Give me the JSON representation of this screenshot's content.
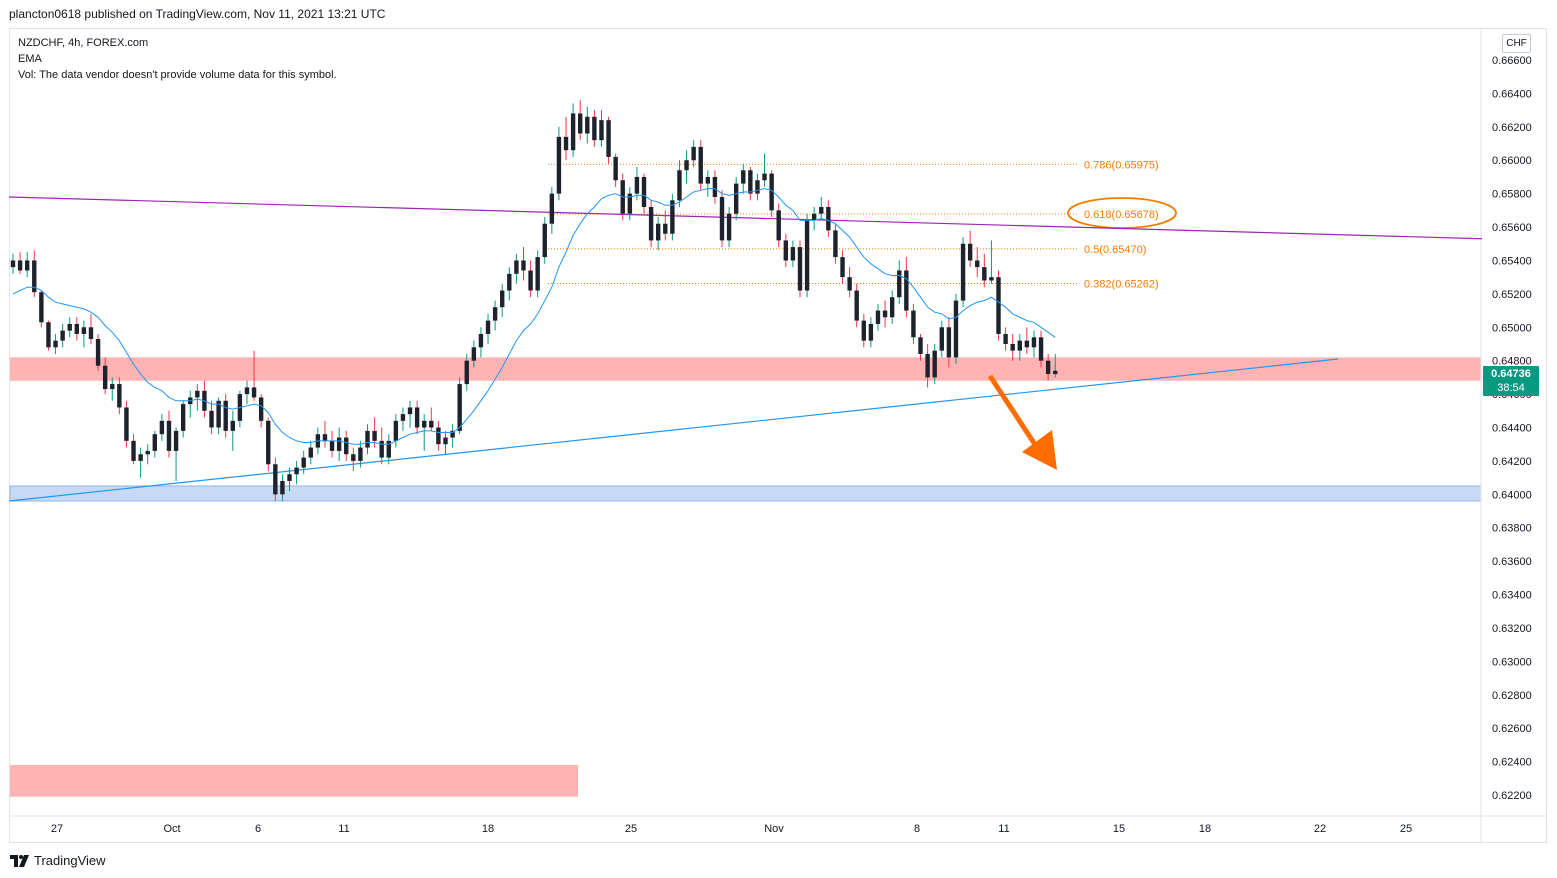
{
  "header": {
    "published_by": "plancton0618 published on TradingView.com, Nov 11, 2021 13:21 UTC"
  },
  "legend": {
    "symbol": "NZDCHF, 4h, FOREX.com",
    "indicator": "EMA",
    "volume_note": "Vol: The data vendor doesn't provide volume data for this symbol."
  },
  "currency_button": "CHF",
  "last_price": {
    "price": "0.64736",
    "countdown": "38:54"
  },
  "brand": "TradingView",
  "colors": {
    "up": "#089981",
    "down": "#f23645",
    "candle_body": "#1e222d",
    "ema": "#2196f3",
    "trend_purple": "#9c27b0",
    "trend_blue": "#2196f3",
    "resistance_zone": "#ffb3b3",
    "support_zone": "#c6d9f5",
    "fib": "#f57c00",
    "arrow": "#ff6d00"
  },
  "chart_data": {
    "type": "candlestick",
    "symbol": "NZDCHF",
    "timeframe": "4h",
    "ylim": [
      0.6212,
      0.6672
    ],
    "y_ticks": [
      "0.66600",
      "0.66400",
      "0.66200",
      "0.66000",
      "0.65800",
      "0.65600",
      "0.65400",
      "0.65200",
      "0.65000",
      "0.64800",
      "0.64600",
      "0.64400",
      "0.64200",
      "0.64000",
      "0.63800",
      "0.63600",
      "0.63400",
      "0.63200",
      "0.63000",
      "0.62800",
      "0.62600",
      "0.62400",
      "0.62200"
    ],
    "x_ticks": [
      "27",
      "Oct",
      "6",
      "11",
      "18",
      "25",
      "Nov",
      "8",
      "11",
      "15",
      "18",
      "22",
      "25"
    ],
    "fibonacci": [
      {
        "label": "0.786(0.65975)",
        "value": 0.65975,
        "highlighted": false
      },
      {
        "label": "0.618(0.65678)",
        "value": 0.65678,
        "highlighted": true
      },
      {
        "label": "0.5(0.65470)",
        "value": 0.6547,
        "highlighted": false
      },
      {
        "label": "0.382(0.65262)",
        "value": 0.65262,
        "highlighted": false
      }
    ],
    "zones": [
      {
        "name": "resistance",
        "from": 0.6468,
        "to": 0.6482
      },
      {
        "name": "support",
        "from": 0.6396,
        "to": 0.6405
      },
      {
        "name": "lower-zone",
        "from": 0.6219,
        "to": 0.6238
      }
    ],
    "trendlines": [
      {
        "name": "descending",
        "from": [
          "Sep 22",
          0.6578
        ],
        "to": [
          "Nov 23",
          0.6553
        ]
      },
      {
        "name": "ascending",
        "from": [
          "Sep 22",
          0.6396
        ],
        "to": [
          "Nov 21",
          0.6481
        ]
      }
    ],
    "candles": [
      [
        0.6536,
        0.6544,
        0.6532,
        0.654
      ],
      [
        0.654,
        0.6545,
        0.6532,
        0.6534
      ],
      [
        0.6534,
        0.6545,
        0.653,
        0.654
      ],
      [
        0.654,
        0.6546,
        0.6518,
        0.6521
      ],
      [
        0.6521,
        0.6522,
        0.65,
        0.6503
      ],
      [
        0.6503,
        0.6504,
        0.6486,
        0.6488
      ],
      [
        0.6488,
        0.6496,
        0.6484,
        0.6492
      ],
      [
        0.6492,
        0.6502,
        0.6488,
        0.6498
      ],
      [
        0.6498,
        0.6506,
        0.6494,
        0.6502
      ],
      [
        0.6502,
        0.6506,
        0.6492,
        0.6496
      ],
      [
        0.6496,
        0.6504,
        0.6488,
        0.65
      ],
      [
        0.65,
        0.6508,
        0.649,
        0.6493
      ],
      [
        0.6493,
        0.6496,
        0.6474,
        0.6477
      ],
      [
        0.6477,
        0.6482,
        0.646,
        0.6463
      ],
      [
        0.6463,
        0.647,
        0.6456,
        0.6466
      ],
      [
        0.6466,
        0.647,
        0.6448,
        0.6452
      ],
      [
        0.6452,
        0.6456,
        0.6428,
        0.6432
      ],
      [
        0.6432,
        0.6436,
        0.6418,
        0.642
      ],
      [
        0.642,
        0.6428,
        0.641,
        0.6424
      ],
      [
        0.6424,
        0.643,
        0.6418,
        0.6426
      ],
      [
        0.6426,
        0.6438,
        0.6422,
        0.6436
      ],
      [
        0.6436,
        0.6448,
        0.6432,
        0.6444
      ],
      [
        0.6444,
        0.645,
        0.6422,
        0.6426
      ],
      [
        0.6426,
        0.644,
        0.6408,
        0.6438
      ],
      [
        0.6438,
        0.6456,
        0.6434,
        0.6454
      ],
      [
        0.6454,
        0.6462,
        0.6446,
        0.6458
      ],
      [
        0.6458,
        0.6466,
        0.645,
        0.6462
      ],
      [
        0.6462,
        0.6468,
        0.6446,
        0.645
      ],
      [
        0.645,
        0.6456,
        0.6436,
        0.644
      ],
      [
        0.644,
        0.6458,
        0.6436,
        0.6456
      ],
      [
        0.6456,
        0.646,
        0.6434,
        0.6438
      ],
      [
        0.6438,
        0.645,
        0.6426,
        0.6444
      ],
      [
        0.6444,
        0.6462,
        0.644,
        0.646
      ],
      [
        0.646,
        0.6468,
        0.6454,
        0.6464
      ],
      [
        0.6464,
        0.6486,
        0.6456,
        0.6458
      ],
      [
        0.6458,
        0.646,
        0.644,
        0.6444
      ],
      [
        0.6444,
        0.6446,
        0.6414,
        0.6418
      ],
      [
        0.6418,
        0.6422,
        0.6396,
        0.64
      ],
      [
        0.64,
        0.6412,
        0.6396,
        0.6408
      ],
      [
        0.6408,
        0.6416,
        0.6402,
        0.6412
      ],
      [
        0.6412,
        0.642,
        0.6406,
        0.6416
      ],
      [
        0.6416,
        0.6426,
        0.6412,
        0.6422
      ],
      [
        0.6422,
        0.6432,
        0.6418,
        0.6428
      ],
      [
        0.6428,
        0.644,
        0.6424,
        0.6436
      ],
      [
        0.6436,
        0.6444,
        0.6428,
        0.6432
      ],
      [
        0.6432,
        0.6438,
        0.6422,
        0.6426
      ],
      [
        0.6426,
        0.644,
        0.642,
        0.6434
      ],
      [
        0.6434,
        0.6438,
        0.642,
        0.6424
      ],
      [
        0.6424,
        0.6428,
        0.6414,
        0.642
      ],
      [
        0.642,
        0.6432,
        0.6416,
        0.6428
      ],
      [
        0.6428,
        0.6442,
        0.6424,
        0.6438
      ],
      [
        0.6438,
        0.6446,
        0.6428,
        0.6432
      ],
      [
        0.6432,
        0.644,
        0.6418,
        0.6422
      ],
      [
        0.6422,
        0.6436,
        0.6418,
        0.6432
      ],
      [
        0.6432,
        0.6448,
        0.6428,
        0.6444
      ],
      [
        0.6444,
        0.6452,
        0.6438,
        0.6448
      ],
      [
        0.6448,
        0.6456,
        0.644,
        0.6452
      ],
      [
        0.6452,
        0.6456,
        0.6436,
        0.644
      ],
      [
        0.644,
        0.6448,
        0.6426,
        0.6444
      ],
      [
        0.6444,
        0.6452,
        0.6438,
        0.644
      ],
      [
        0.644,
        0.6444,
        0.6426,
        0.643
      ],
      [
        0.643,
        0.6438,
        0.6424,
        0.6434
      ],
      [
        0.6434,
        0.6442,
        0.6428,
        0.6438
      ],
      [
        0.6438,
        0.647,
        0.6436,
        0.6466
      ],
      [
        0.6466,
        0.6484,
        0.6462,
        0.648
      ],
      [
        0.648,
        0.6492,
        0.6476,
        0.6488
      ],
      [
        0.6488,
        0.65,
        0.6482,
        0.6496
      ],
      [
        0.6496,
        0.6508,
        0.649,
        0.6504
      ],
      [
        0.6504,
        0.6516,
        0.6498,
        0.6512
      ],
      [
        0.6512,
        0.6526,
        0.6506,
        0.6522
      ],
      [
        0.6522,
        0.6536,
        0.6516,
        0.6532
      ],
      [
        0.6532,
        0.6544,
        0.6526,
        0.654
      ],
      [
        0.654,
        0.6548,
        0.6528,
        0.6534
      ],
      [
        0.6534,
        0.654,
        0.6518,
        0.6522
      ],
      [
        0.6522,
        0.6546,
        0.6518,
        0.6542
      ],
      [
        0.6542,
        0.6566,
        0.6538,
        0.6562
      ],
      [
        0.6562,
        0.6584,
        0.6556,
        0.658
      ],
      [
        0.658,
        0.662,
        0.6576,
        0.6614
      ],
      [
        0.6614,
        0.6626,
        0.66,
        0.6606
      ],
      [
        0.6606,
        0.6634,
        0.6602,
        0.6628
      ],
      [
        0.6628,
        0.6636,
        0.6612,
        0.6616
      ],
      [
        0.6616,
        0.6632,
        0.661,
        0.6626
      ],
      [
        0.6626,
        0.663,
        0.6608,
        0.6612
      ],
      [
        0.6612,
        0.663,
        0.6608,
        0.6624
      ],
      [
        0.6624,
        0.6626,
        0.6598,
        0.6602
      ],
      [
        0.6602,
        0.6604,
        0.6584,
        0.6588
      ],
      [
        0.6588,
        0.6592,
        0.6564,
        0.6568
      ],
      [
        0.6568,
        0.6584,
        0.6564,
        0.658
      ],
      [
        0.658,
        0.6596,
        0.6576,
        0.659
      ],
      [
        0.659,
        0.6592,
        0.6568,
        0.6572
      ],
      [
        0.6572,
        0.6576,
        0.6548,
        0.6552
      ],
      [
        0.6552,
        0.6566,
        0.6546,
        0.6562
      ],
      [
        0.6562,
        0.657,
        0.6552,
        0.6556
      ],
      [
        0.6556,
        0.658,
        0.6552,
        0.6576
      ],
      [
        0.6576,
        0.66,
        0.6572,
        0.6594
      ],
      [
        0.6594,
        0.6606,
        0.6586,
        0.66
      ],
      [
        0.66,
        0.6612,
        0.6596,
        0.6608
      ],
      [
        0.6608,
        0.6612,
        0.6582,
        0.6586
      ],
      [
        0.6586,
        0.6594,
        0.6578,
        0.659
      ],
      [
        0.659,
        0.6594,
        0.6574,
        0.6578
      ],
      [
        0.6578,
        0.6582,
        0.6548,
        0.6552
      ],
      [
        0.6552,
        0.6572,
        0.6548,
        0.6568
      ],
      [
        0.6568,
        0.659,
        0.6564,
        0.6586
      ],
      [
        0.6586,
        0.6598,
        0.658,
        0.6594
      ],
      [
        0.6594,
        0.6596,
        0.6576,
        0.658
      ],
      [
        0.658,
        0.6592,
        0.6576,
        0.6588
      ],
      [
        0.6588,
        0.6604,
        0.6584,
        0.6592
      ],
      [
        0.6592,
        0.6594,
        0.6566,
        0.657
      ],
      [
        0.657,
        0.6574,
        0.6548,
        0.6552
      ],
      [
        0.6552,
        0.6556,
        0.6536,
        0.654
      ],
      [
        0.654,
        0.6552,
        0.6536,
        0.6548
      ],
      [
        0.6548,
        0.6552,
        0.6518,
        0.6522
      ],
      [
        0.6522,
        0.6568,
        0.6518,
        0.6564
      ],
      [
        0.6564,
        0.6572,
        0.6558,
        0.6568
      ],
      [
        0.6568,
        0.6578,
        0.6564,
        0.6572
      ],
      [
        0.6572,
        0.6576,
        0.6554,
        0.6558
      ],
      [
        0.6558,
        0.6562,
        0.6538,
        0.6542
      ],
      [
        0.6542,
        0.6546,
        0.6526,
        0.653
      ],
      [
        0.653,
        0.6536,
        0.6518,
        0.6522
      ],
      [
        0.6522,
        0.6526,
        0.65,
        0.6504
      ],
      [
        0.6504,
        0.6508,
        0.6488,
        0.6492
      ],
      [
        0.6492,
        0.6506,
        0.6488,
        0.6502
      ],
      [
        0.6502,
        0.6514,
        0.6498,
        0.651
      ],
      [
        0.651,
        0.6516,
        0.65,
        0.6506
      ],
      [
        0.6506,
        0.6522,
        0.6502,
        0.6518
      ],
      [
        0.6518,
        0.654,
        0.6514,
        0.6534
      ],
      [
        0.6534,
        0.6542,
        0.6506,
        0.651
      ],
      [
        0.651,
        0.6514,
        0.649,
        0.6494
      ],
      [
        0.6494,
        0.6496,
        0.648,
        0.6484
      ],
      [
        0.6484,
        0.649,
        0.6464,
        0.647
      ],
      [
        0.647,
        0.649,
        0.6466,
        0.6486
      ],
      [
        0.6486,
        0.6504,
        0.6482,
        0.65
      ],
      [
        0.65,
        0.6506,
        0.6476,
        0.6482
      ],
      [
        0.6482,
        0.652,
        0.6478,
        0.6516
      ],
      [
        0.6516,
        0.6554,
        0.6512,
        0.655
      ],
      [
        0.655,
        0.6558,
        0.6536,
        0.654
      ],
      [
        0.654,
        0.6548,
        0.653,
        0.6536
      ],
      [
        0.6536,
        0.6544,
        0.6524,
        0.6528
      ],
      [
        0.6528,
        0.6552,
        0.6526,
        0.653
      ],
      [
        0.653,
        0.6534,
        0.6492,
        0.6496
      ],
      [
        0.6496,
        0.65,
        0.6486,
        0.649
      ],
      [
        0.649,
        0.6496,
        0.648,
        0.6486
      ],
      [
        0.6486,
        0.6496,
        0.648,
        0.6492
      ],
      [
        0.6492,
        0.65,
        0.6484,
        0.6488
      ],
      [
        0.6488,
        0.6498,
        0.6482,
        0.6494
      ],
      [
        0.6494,
        0.6498,
        0.6476,
        0.648
      ],
      [
        0.648,
        0.6484,
        0.6468,
        0.6472
      ],
      [
        0.6472,
        0.6484,
        0.647,
        0.6474
      ]
    ],
    "ema_period_note": "",
    "ema": [
      0.652,
      0.6522,
      0.6524,
      0.6524,
      0.6522,
      0.6518,
      0.6515,
      0.6514,
      0.6513,
      0.6512,
      0.6511,
      0.6509,
      0.6506,
      0.6501,
      0.6497,
      0.6492,
      0.6485,
      0.6478,
      0.6472,
      0.6467,
      0.6464,
      0.6462,
      0.6458,
      0.6456,
      0.6456,
      0.6456,
      0.6457,
      0.6456,
      0.6454,
      0.6454,
      0.6452,
      0.6451,
      0.6452,
      0.6453,
      0.6454,
      0.6453,
      0.6449,
      0.6442,
      0.6437,
      0.6434,
      0.6432,
      0.6431,
      0.6431,
      0.6432,
      0.6432,
      0.6432,
      0.6432,
      0.6431,
      0.643,
      0.643,
      0.6431,
      0.6431,
      0.643,
      0.643,
      0.6432,
      0.6434,
      0.6436,
      0.6437,
      0.6438,
      0.6438,
      0.6437,
      0.6437,
      0.6437,
      0.644,
      0.6445,
      0.645,
      0.6456,
      0.6462,
      0.6469,
      0.6476,
      0.6484,
      0.6492,
      0.6498,
      0.6502,
      0.6508,
      0.6516,
      0.6524,
      0.6536,
      0.6545,
      0.6555,
      0.6562,
      0.6568,
      0.6572,
      0.6577,
      0.6579,
      0.658,
      0.6578,
      0.6578,
      0.6579,
      0.6579,
      0.6576,
      0.6575,
      0.6573,
      0.6573,
      0.6575,
      0.6578,
      0.6581,
      0.6582,
      0.6583,
      0.6583,
      0.658,
      0.6579,
      0.658,
      0.6581,
      0.6581,
      0.6582,
      0.6583,
      0.6582,
      0.6578,
      0.6573,
      0.657,
      0.6564,
      0.6564,
      0.6564,
      0.6565,
      0.6564,
      0.6562,
      0.6558,
      0.6554,
      0.6548,
      0.6542,
      0.6538,
      0.6535,
      0.6532,
      0.6531,
      0.6531,
      0.6529,
      0.6524,
      0.6518,
      0.6512,
      0.6509,
      0.6508,
      0.6505,
      0.6506,
      0.651,
      0.6513,
      0.6515,
      0.6516,
      0.6518,
      0.6515,
      0.6512,
      0.6508,
      0.6506,
      0.6504,
      0.6503,
      0.65,
      0.6497,
      0.6494
    ]
  }
}
